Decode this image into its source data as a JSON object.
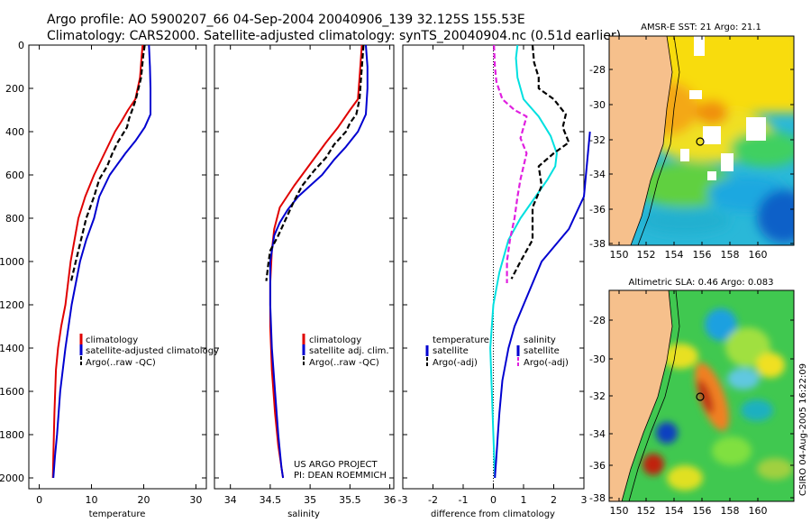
{
  "header": {
    "line1": "Argo profile: AO 5900207_66 04-Sep-2004 20040906_139 32.125S 155.53E",
    "line2": "Climatology: CARS2000. Satellite-adjusted climatology: synTS_20040904.nc (0.51d earlier)"
  },
  "credit": "CSIRO 04-Aug-2005 16:22:09",
  "project": {
    "line1": "US ARGO PROJECT",
    "line2": "PI: DEAN ROEMMICH"
  },
  "colors": {
    "climatology": "#e00000",
    "satellite": "#0000d0",
    "argo": "#000000",
    "sat_temp": "#00e0e0",
    "sal_diff": "#e020e0",
    "land": "#f6c08c"
  },
  "chart_data": [
    {
      "type": "line",
      "id": "temperature",
      "xlabel": "temperature",
      "ylabel": "",
      "xlim": [
        -2,
        32
      ],
      "ylim": [
        2050,
        0
      ],
      "xticks": [
        0,
        10,
        20,
        30
      ],
      "yticks": [
        0,
        200,
        400,
        600,
        800,
        1000,
        1200,
        1400,
        1600,
        1800,
        2000
      ],
      "legend": [
        "climatology",
        "satellite-adjusted climatology",
        "Argo(..raw -QC)"
      ],
      "series": [
        {
          "name": "climatology",
          "color": "#e00000",
          "dash": "none",
          "x": [
            19.8,
            19.6,
            19.3,
            18.4,
            17.0,
            15.8,
            14.5,
            12.5,
            10.5,
            8.8,
            7.5,
            6.0,
            5.0,
            4.2,
            3.6,
            3.2,
            2.9,
            2.7,
            2.6
          ],
          "y": [
            0,
            50,
            150,
            250,
            300,
            350,
            400,
            500,
            600,
            700,
            800,
            1000,
            1200,
            1300,
            1400,
            1500,
            1700,
            1900,
            2000
          ]
        },
        {
          "name": "satellite-adjusted climatology",
          "color": "#0000d0",
          "dash": "none",
          "x": [
            21.0,
            21.2,
            21.3,
            21.3,
            20.2,
            18.5,
            16.5,
            13.5,
            11.5,
            10.5,
            9.0,
            7.8,
            6.2,
            5.0,
            4.0,
            3.4,
            3.0,
            2.7
          ],
          "y": [
            0,
            100,
            200,
            320,
            380,
            440,
            500,
            600,
            700,
            800,
            900,
            1000,
            1200,
            1400,
            1600,
            1800,
            1900,
            2000
          ]
        },
        {
          "name": "Argo(..raw -QC)",
          "color": "#000000",
          "dash": "6,3",
          "x": [
            20.2,
            19.9,
            19.5,
            18.5,
            17.8,
            17.2,
            16.8,
            15.0,
            14.0,
            13.0,
            11.5,
            10.5,
            9.0,
            8.0,
            7.0,
            6.0
          ],
          "y": [
            0,
            50,
            150,
            250,
            300,
            340,
            380,
            450,
            500,
            560,
            620,
            700,
            800,
            900,
            1000,
            1100
          ]
        }
      ]
    },
    {
      "type": "line",
      "id": "salinity",
      "xlabel": "salinity",
      "xlim": [
        33.8,
        36.05
      ],
      "ylim": [
        2050,
        0
      ],
      "xticks": [
        34,
        34.5,
        35,
        35.5,
        36
      ],
      "legend": [
        "climatology",
        "satellite adj. clim.",
        "Argo(..raw -QC)"
      ],
      "series": [
        {
          "name": "climatology",
          "color": "#e00000",
          "dash": "none",
          "x": [
            35.65,
            35.64,
            35.62,
            35.6,
            35.5,
            35.35,
            35.2,
            35.0,
            34.8,
            34.62,
            34.55,
            34.52,
            34.5,
            34.5,
            34.52,
            34.56,
            34.6,
            34.64,
            34.66
          ],
          "y": [
            0,
            50,
            150,
            250,
            300,
            380,
            450,
            550,
            650,
            750,
            850,
            950,
            1100,
            1300,
            1500,
            1700,
            1850,
            1950,
            2000
          ]
        },
        {
          "name": "satellite adj. clim.",
          "color": "#0000d0",
          "dash": "none",
          "x": [
            35.7,
            35.72,
            35.72,
            35.7,
            35.6,
            35.45,
            35.3,
            35.15,
            35.0,
            34.85,
            34.72,
            34.62,
            34.55,
            34.5,
            34.5,
            34.52,
            34.56,
            34.6,
            34.64,
            34.66
          ],
          "y": [
            0,
            100,
            200,
            320,
            400,
            470,
            530,
            600,
            650,
            700,
            760,
            820,
            880,
            1000,
            1200,
            1400,
            1600,
            1800,
            1950,
            2000
          ]
        },
        {
          "name": "Argo(..raw -QC)",
          "color": "#000000",
          "dash": "6,3",
          "x": [
            35.67,
            35.66,
            35.64,
            35.62,
            35.58,
            35.5,
            35.45,
            35.3,
            35.2,
            35.05,
            34.9,
            34.8,
            34.7,
            34.6,
            34.5,
            34.48,
            34.45
          ],
          "y": [
            0,
            50,
            150,
            250,
            320,
            360,
            400,
            460,
            520,
            580,
            650,
            720,
            800,
            880,
            950,
            1000,
            1090
          ]
        }
      ]
    },
    {
      "type": "line",
      "id": "difference",
      "xlabel": "difference from climatology",
      "xlim": [
        -3,
        3
      ],
      "ylim": [
        2050,
        0
      ],
      "xticks": [
        -3,
        -2,
        -1,
        0,
        1,
        2,
        3
      ],
      "zero_line": true,
      "legend_left": [
        "temperature",
        "satellite",
        "Argo(-adj)"
      ],
      "legend_right": [
        "salinity",
        "satellite",
        "Argo(-adj)"
      ],
      "series": [
        {
          "name": "temperature satellite",
          "color": "#00e0e0",
          "dash": "none",
          "x": [
            0.8,
            0.75,
            0.8,
            1.0,
            1.5,
            1.9,
            2.1,
            2.05,
            1.8,
            1.4,
            0.9,
            0.5,
            0.2,
            0.0,
            -0.1,
            -0.05,
            0.0,
            0.05
          ],
          "y": [
            0,
            60,
            150,
            250,
            330,
            420,
            500,
            560,
            620,
            700,
            800,
            900,
            1050,
            1200,
            1400,
            1600,
            1800,
            2000
          ]
        },
        {
          "name": "temperature Argo(-adj)",
          "color": "#000000",
          "dash": "6,3",
          "x": [
            1.3,
            1.35,
            1.5,
            1.5,
            2.0,
            2.4,
            2.3,
            2.5,
            2.0,
            1.5,
            1.6,
            1.3,
            1.3,
            0.9,
            0.6
          ],
          "y": [
            0,
            80,
            150,
            200,
            250,
            320,
            380,
            450,
            500,
            560,
            650,
            750,
            900,
            1000,
            1080
          ]
        },
        {
          "name": "salinity satellite",
          "color": "#0000d0",
          "dash": "none",
          "x": [
            3.2,
            3.0,
            2.5,
            1.6,
            1.0,
            0.7,
            0.5,
            0.3,
            0.2,
            0.15,
            0.1,
            0.05
          ],
          "y": [
            400,
            700,
            850,
            1000,
            1200,
            1300,
            1400,
            1550,
            1700,
            1800,
            1900,
            2000
          ]
        },
        {
          "name": "salinity Argo(-adj)",
          "color": "#e020e0",
          "dash": "6,3",
          "x": [
            0.02,
            0.05,
            0.1,
            0.3,
            0.7,
            1.1,
            1.0,
            0.9,
            1.1,
            1.0,
            0.9,
            0.8,
            0.7,
            0.55,
            0.45,
            0.45
          ],
          "y": [
            0,
            100,
            170,
            250,
            300,
            330,
            380,
            430,
            500,
            560,
            620,
            700,
            800,
            900,
            1000,
            1100
          ]
        }
      ]
    }
  ],
  "maps": [
    {
      "id": "sst",
      "title": "AMSR-E SST: 21 Argo: 21.1",
      "yticks": [
        "-28",
        "-30",
        "-32",
        "-34",
        "-36",
        "-38"
      ],
      "xticks": [
        "150",
        "152",
        "154",
        "156",
        "158",
        "160"
      ]
    },
    {
      "id": "sla",
      "title": "Altimetric SLA: 0.46 Argo: 0.083",
      "yticks": [
        "-28",
        "-30",
        "-32",
        "-34",
        "-36",
        "-38"
      ],
      "xticks": [
        "150",
        "152",
        "154",
        "156",
        "158",
        "160"
      ]
    }
  ]
}
